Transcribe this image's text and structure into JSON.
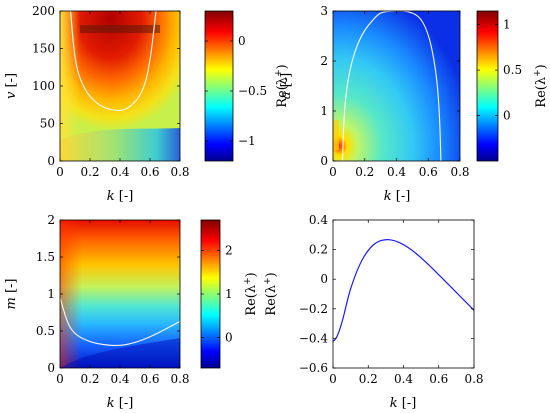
{
  "chart_data": [
    {
      "type": "heatmap",
      "panel": "top-left",
      "xlabel": "k [-]",
      "ylabel": "v [-]",
      "colorbar_label": "Re(λ⁺)",
      "xlim": [
        0,
        0.8
      ],
      "ylim": [
        0,
        200
      ],
      "xticks": [
        "0",
        "0.2",
        "0.4",
        "0.6",
        "0.8"
      ],
      "yticks": [
        "0",
        "50",
        "100",
        "150",
        "200"
      ],
      "clim": [
        -1.2,
        0.3
      ],
      "cticks": [
        "0",
        "−0.5",
        "−1"
      ],
      "cticks_values": [
        0,
        -0.5,
        -1
      ],
      "zero_contour": [
        [
          0.07,
          200
        ],
        [
          0.1,
          130
        ],
        [
          0.16,
          95
        ],
        [
          0.25,
          75
        ],
        [
          0.35,
          67
        ],
        [
          0.45,
          68
        ],
        [
          0.55,
          90
        ],
        [
          0.6,
          130
        ],
        [
          0.64,
          200
        ]
      ]
    },
    {
      "type": "heatmap",
      "panel": "top-right",
      "xlabel": "k [-]",
      "ylabel": "a [-]",
      "colorbar_label": "Re(λ⁺)",
      "xlim": [
        0,
        0.8
      ],
      "ylim": [
        0,
        3
      ],
      "xticks": [
        "0",
        "0.2",
        "0.4",
        "0.6",
        "0.8"
      ],
      "yticks": [
        "0",
        "1",
        "2",
        "3"
      ],
      "clim": [
        -0.5,
        1.15
      ],
      "cticks": [
        "1",
        "0.5",
        "0"
      ],
      "cticks_values": [
        1,
        0.5,
        0
      ],
      "zero_contour": [
        [
          0.06,
          0
        ],
        [
          0.07,
          1.0
        ],
        [
          0.1,
          1.8
        ],
        [
          0.17,
          2.5
        ],
        [
          0.27,
          2.9
        ],
        [
          0.32,
          3.0
        ],
        [
          0.52,
          3.0
        ],
        [
          0.6,
          2.6
        ],
        [
          0.65,
          1.8
        ],
        [
          0.67,
          1.0
        ],
        [
          0.68,
          0
        ]
      ]
    },
    {
      "type": "heatmap",
      "panel": "bottom-left",
      "xlabel": "k [-]",
      "ylabel": "m [-]",
      "colorbar_label": "Re(λ⁺)",
      "xlim": [
        0,
        0.8
      ],
      "ylim": [
        0,
        2
      ],
      "xticks": [
        "0",
        "0.2",
        "0.4",
        "0.6",
        "0.8"
      ],
      "yticks": [
        "0",
        "0.5",
        "1",
        "1.5",
        "2"
      ],
      "clim": [
        -0.7,
        2.7
      ],
      "cticks": [
        "2",
        "1",
        "0"
      ],
      "cticks_values": [
        2,
        1,
        0
      ],
      "zero_contour": [
        [
          0,
          0.95
        ],
        [
          0.05,
          0.6
        ],
        [
          0.1,
          0.45
        ],
        [
          0.2,
          0.35
        ],
        [
          0.3,
          0.31
        ],
        [
          0.4,
          0.3
        ],
        [
          0.5,
          0.34
        ],
        [
          0.6,
          0.42
        ],
        [
          0.7,
          0.52
        ],
        [
          0.8,
          0.63
        ]
      ]
    },
    {
      "type": "line",
      "panel": "bottom-right",
      "xlabel": "k [-]",
      "ylabel": "Re(λ⁺)",
      "xlim": [
        0,
        0.8
      ],
      "ylim": [
        -0.6,
        0.4
      ],
      "xticks": [
        "0",
        "0.2",
        "0.4",
        "0.6",
        "0.8"
      ],
      "yticks": [
        "0.4",
        "0.2",
        "0",
        "−0.2",
        "−0.4",
        "−0.6"
      ],
      "grid": false,
      "series": [
        {
          "color": "#1a1aff",
          "x": [
            0,
            0.02,
            0.05,
            0.08,
            0.1,
            0.15,
            0.2,
            0.25,
            0.3,
            0.35,
            0.4,
            0.45,
            0.5,
            0.55,
            0.6,
            0.65,
            0.7,
            0.75,
            0.8
          ],
          "y": [
            -0.42,
            -0.4,
            -0.3,
            -0.15,
            -0.06,
            0.1,
            0.2,
            0.255,
            0.27,
            0.262,
            0.235,
            0.195,
            0.145,
            0.09,
            0.03,
            -0.03,
            -0.09,
            -0.15,
            -0.21
          ]
        }
      ]
    }
  ]
}
